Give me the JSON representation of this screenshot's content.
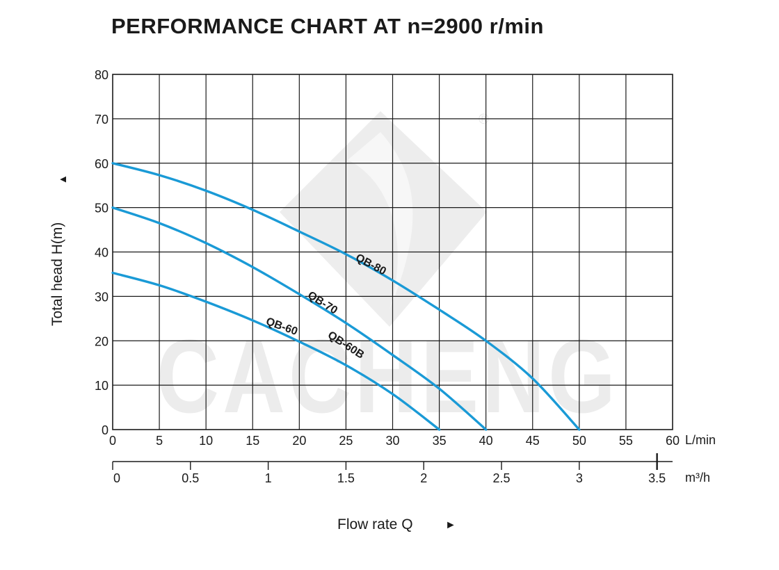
{
  "chart_data": {
    "type": "line",
    "title": "PERFORMANCE CHART AT n=2900 r/min",
    "ylabel": "Total  head H(m)",
    "ylabel_arrow": "▲",
    "xlabel": "Flow rate   Q",
    "xlabel_arrow": "►",
    "ylim": [
      0,
      80
    ],
    "xlim": [
      0,
      60
    ],
    "x_unit": "L/min",
    "x2_unit": "m³/h",
    "x_ticks": [
      0,
      5,
      10,
      15,
      20,
      25,
      30,
      35,
      40,
      45,
      50,
      55,
      60
    ],
    "y_ticks": [
      0,
      10,
      20,
      30,
      40,
      50,
      60,
      70,
      80
    ],
    "x2_ticks": [
      "0",
      "0.5",
      "1",
      "1.5",
      "2",
      "2.5",
      "3",
      "3.5"
    ],
    "x2_tick_values": [
      0,
      0.5,
      1,
      1.5,
      2,
      2.5,
      3,
      3.5
    ],
    "x2_max": 3.6,
    "grid": true,
    "series_color": "#1a9ad6",
    "series": [
      {
        "name": "QB-80",
        "x": [
          0,
          5,
          10,
          15,
          20,
          25,
          30,
          35,
          40,
          45,
          50
        ],
        "values": [
          60,
          57.3,
          53.8,
          49.5,
          44.6,
          39.5,
          33.6,
          27,
          20,
          11.5,
          0
        ]
      },
      {
        "name": "QB-70",
        "x": [
          0,
          5,
          10,
          15,
          20,
          25,
          30,
          35,
          40
        ],
        "values": [
          50,
          46.5,
          42,
          36.6,
          30.5,
          24,
          16.8,
          9.2,
          0
        ]
      },
      {
        "name": "QB-60",
        "x": [
          0,
          5,
          10,
          15,
          20,
          25,
          30,
          35
        ],
        "values": [
          35.3,
          32.5,
          28.8,
          24.6,
          19.8,
          14.5,
          8,
          0
        ]
      }
    ],
    "annotations": [
      {
        "text": "QB-80",
        "x": 27.5,
        "y": 36.5,
        "rotate": 28
      },
      {
        "text": "QB-70",
        "x": 22.3,
        "y": 27.9,
        "rotate": 32
      },
      {
        "text": "QB-60",
        "x": 18,
        "y": 22.5,
        "rotate": 20
      },
      {
        "text": "QB-60B",
        "x": 24.8,
        "y": 18.4,
        "rotate": 33
      }
    ]
  },
  "watermark_text": "CACHENG",
  "watermark_mark": "®"
}
